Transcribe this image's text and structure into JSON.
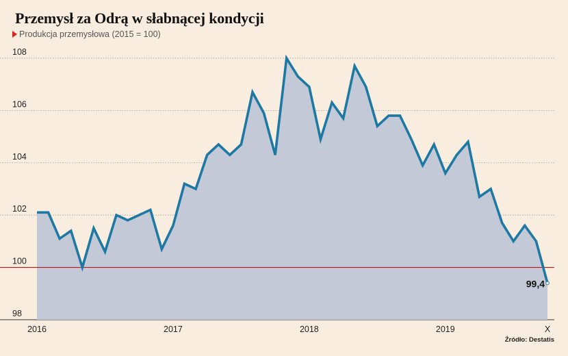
{
  "title": "Przemysł za Odrą w słabnącej kondycji",
  "subtitle": "Produkcja przemysłowa (2015 = 100)",
  "source": "Źródło: Destatis",
  "colors": {
    "background": "#f9ede0",
    "line": "#1d79a3",
    "area": "#c3c9d6",
    "reference": "#b5161a",
    "accent": "#e3201b"
  },
  "chart_data": {
    "type": "area",
    "title": "Przemysł za Odrą w słabnącej kondycji",
    "ylabel": "Produkcja przemysłowa (2015 = 100)",
    "ylim": [
      98,
      108.6
    ],
    "yticks": [
      "98",
      "100",
      "102",
      "104",
      "106",
      "108"
    ],
    "xticks": [
      "2016",
      "2017",
      "2018",
      "2019",
      "X"
    ],
    "reference_line": 100,
    "grid": "horizontal dotted",
    "end_label": "99,4",
    "x": [
      "2016-01",
      "2016-02",
      "2016-03",
      "2016-04",
      "2016-05",
      "2016-06",
      "2016-07",
      "2016-08",
      "2016-09",
      "2016-10",
      "2016-11",
      "2016-12",
      "2017-01",
      "2017-02",
      "2017-03",
      "2017-04",
      "2017-05",
      "2017-06",
      "2017-07",
      "2017-08",
      "2017-09",
      "2017-10",
      "2017-11",
      "2017-12",
      "2018-01",
      "2018-02",
      "2018-03",
      "2018-04",
      "2018-05",
      "2018-06",
      "2018-07",
      "2018-08",
      "2018-09",
      "2018-10",
      "2018-11",
      "2018-12",
      "2019-01",
      "2019-02",
      "2019-03",
      "2019-04",
      "2019-05",
      "2019-06",
      "2019-07",
      "2019-08",
      "2019-09",
      "2019-10"
    ],
    "values": [
      102.1,
      102.1,
      101.1,
      101.4,
      100.0,
      101.5,
      100.6,
      102.0,
      101.8,
      102.0,
      102.2,
      100.7,
      101.6,
      103.2,
      103.0,
      104.3,
      104.7,
      104.3,
      104.7,
      106.7,
      105.9,
      104.3,
      108.0,
      107.3,
      106.9,
      104.9,
      106.3,
      105.7,
      107.7,
      106.9,
      105.4,
      105.8,
      105.8,
      104.9,
      103.9,
      104.7,
      103.6,
      104.3,
      104.8,
      102.7,
      103.0,
      101.7,
      101.0,
      101.6,
      101.0,
      99.4
    ]
  }
}
